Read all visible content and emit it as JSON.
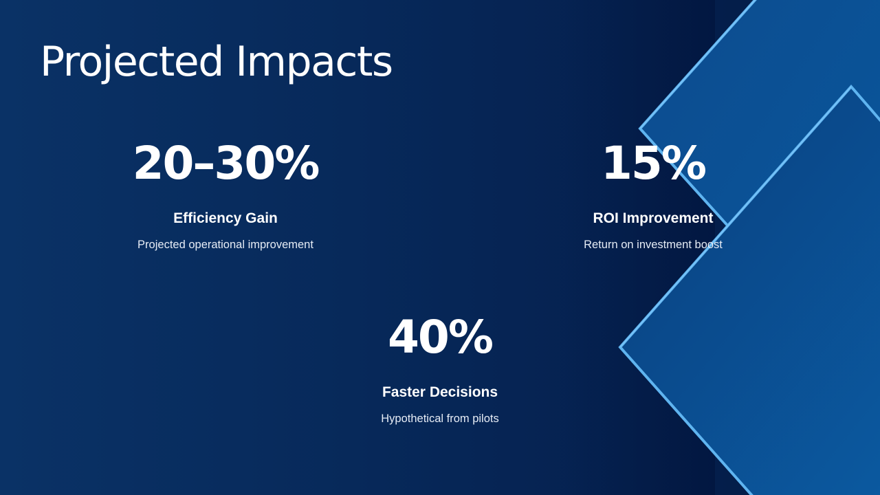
{
  "slide": {
    "title": "Projected Impacts",
    "stats": [
      {
        "value": "20–30%",
        "label": "Efficiency Gain",
        "description": "Projected operational improvement"
      },
      {
        "value": "15%",
        "label": "ROI Improvement",
        "description": "Return on investment boost"
      },
      {
        "value": "40%",
        "label": "Faster Decisions",
        "description": "Hypothetical from pilots"
      }
    ]
  },
  "colors": {
    "background": "#07295a",
    "accent_line": "#5fb4f0",
    "text": "#ffffff"
  }
}
